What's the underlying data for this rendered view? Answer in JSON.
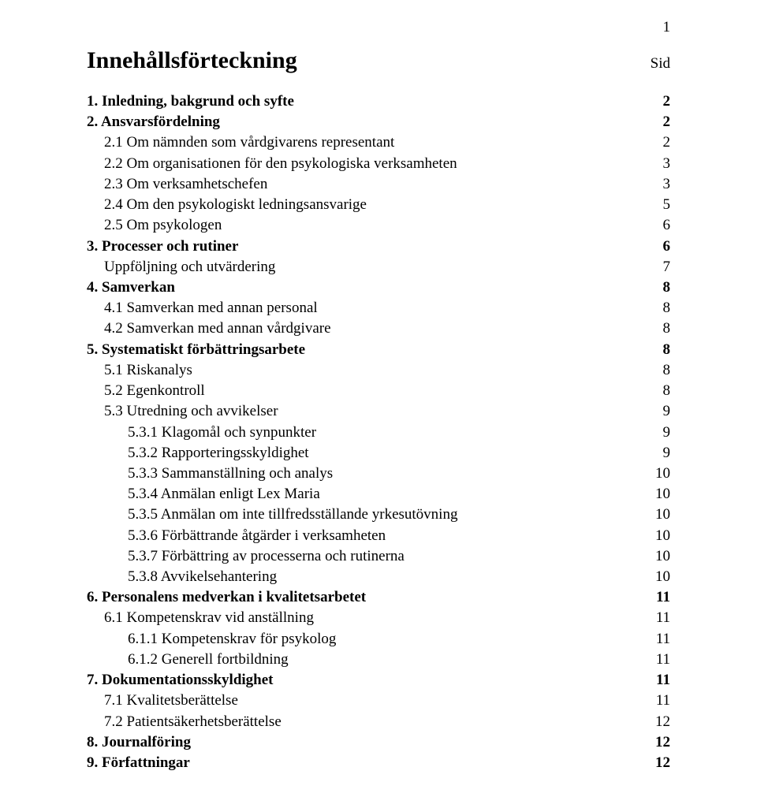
{
  "page_number": "1",
  "title": "Innehållsförteckning",
  "page_label": "Sid",
  "entries": [
    {
      "label": "1. Inledning, bakgrund och syfte",
      "page": "2",
      "indent": 0,
      "bold": true
    },
    {
      "label": "2. Ansvarsfördelning",
      "page": "2",
      "indent": 0,
      "bold": true
    },
    {
      "label": "2.1 Om nämnden som vårdgivarens representant",
      "page": "2",
      "indent": 1,
      "bold": false
    },
    {
      "label": "2.2 Om organisationen för den psykologiska verksamheten",
      "page": "3",
      "indent": 1,
      "bold": false
    },
    {
      "label": "2.3 Om verksamhetschefen",
      "page": "3",
      "indent": 1,
      "bold": false
    },
    {
      "label": "2.4 Om den psykologiskt ledningsansvarige",
      "page": "5",
      "indent": 1,
      "bold": false
    },
    {
      "label": "2.5 Om psykologen",
      "page": "6",
      "indent": 1,
      "bold": false
    },
    {
      "label": "3. Processer och rutiner",
      "page": "6",
      "indent": 0,
      "bold": true
    },
    {
      "label": "Uppföljning och utvärdering",
      "page": "7",
      "indent": 1,
      "bold": false
    },
    {
      "label": "4. Samverkan",
      "page": "8",
      "indent": 0,
      "bold": true
    },
    {
      "label": "4.1 Samverkan med annan personal",
      "page": "8",
      "indent": 1,
      "bold": false
    },
    {
      "label": "4.2 Samverkan med annan vårdgivare",
      "page": "8",
      "indent": 1,
      "bold": false
    },
    {
      "label": "5. Systematiskt förbättringsarbete",
      "page": "8",
      "indent": 0,
      "bold": true
    },
    {
      "label": "5.1 Riskanalys",
      "page": "8",
      "indent": 1,
      "bold": false
    },
    {
      "label": "5.2 Egenkontroll",
      "page": "8",
      "indent": 1,
      "bold": false
    },
    {
      "label": "5.3 Utredning och avvikelser",
      "page": "9",
      "indent": 1,
      "bold": false
    },
    {
      "label": "5.3.1 Klagomål och synpunkter",
      "page": "9",
      "indent": 2,
      "bold": false
    },
    {
      "label": "5.3.2 Rapporteringsskyldighet",
      "page": "9",
      "indent": 2,
      "bold": false
    },
    {
      "label": "5.3.3 Sammanställning och analys",
      "page": "10",
      "indent": 2,
      "bold": false
    },
    {
      "label": "5.3.4 Anmälan enligt Lex Maria",
      "page": "10",
      "indent": 2,
      "bold": false
    },
    {
      "label": "5.3.5 Anmälan om inte tillfredsställande yrkesutövning",
      "page": "10",
      "indent": 2,
      "bold": false
    },
    {
      "label": "5.3.6 Förbättrande åtgärder i verksamheten",
      "page": "10",
      "indent": 2,
      "bold": false
    },
    {
      "label": "5.3.7 Förbättring av processerna och rutinerna",
      "page": "10",
      "indent": 2,
      "bold": false
    },
    {
      "label": "5.3.8 Avvikelsehantering",
      "page": "10",
      "indent": 2,
      "bold": false
    },
    {
      "label": "6. Personalens medverkan i kvalitetsarbetet",
      "page": "11",
      "indent": 0,
      "bold": true
    },
    {
      "label": "6.1 Kompetenskrav vid anställning",
      "page": "11",
      "indent": 1,
      "bold": false
    },
    {
      "label": "6.1.1 Kompetenskrav för psykolog",
      "page": "11",
      "indent": 2,
      "bold": false
    },
    {
      "label": "6.1.2 Generell fortbildning",
      "page": "11",
      "indent": 2,
      "bold": false
    },
    {
      "label": "7. Dokumentationsskyldighet",
      "page": "11",
      "indent": 0,
      "bold": true
    },
    {
      "label": "7.1 Kvalitetsberättelse",
      "page": "11",
      "indent": 1,
      "bold": false
    },
    {
      "label": "7.2 Patientsäkerhetsberättelse",
      "page": "12",
      "indent": 1,
      "bold": false
    },
    {
      "label": "8. Journalföring",
      "page": "12",
      "indent": 0,
      "bold": true
    },
    {
      "label": "9. Författningar",
      "page": "12",
      "indent": 0,
      "bold": true
    }
  ]
}
